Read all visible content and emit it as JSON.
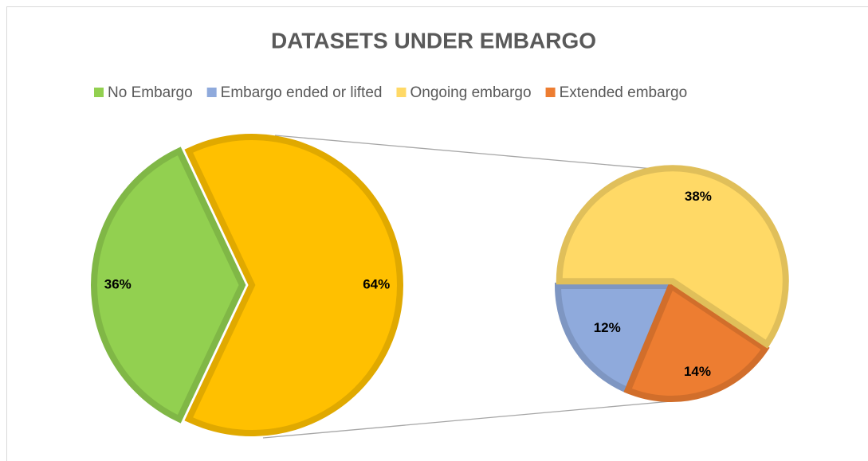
{
  "chart_data": {
    "type": "pie",
    "title": "DATASETS UNDER EMBARGO",
    "categories": [
      "No Embargo",
      "Embargo ended or lifted",
      "Ongoing embargo",
      "Extended embargo"
    ],
    "colors": [
      "#92d050",
      "#8faadc",
      "#ffd966",
      "#ed7d31"
    ],
    "values": [
      36,
      12,
      38,
      14
    ],
    "value_labels": [
      "36%",
      "12%",
      "38%",
      "14%"
    ],
    "other_value": 64,
    "other_value_label": "64%",
    "other_color": "#ffc000",
    "legend": "top"
  }
}
